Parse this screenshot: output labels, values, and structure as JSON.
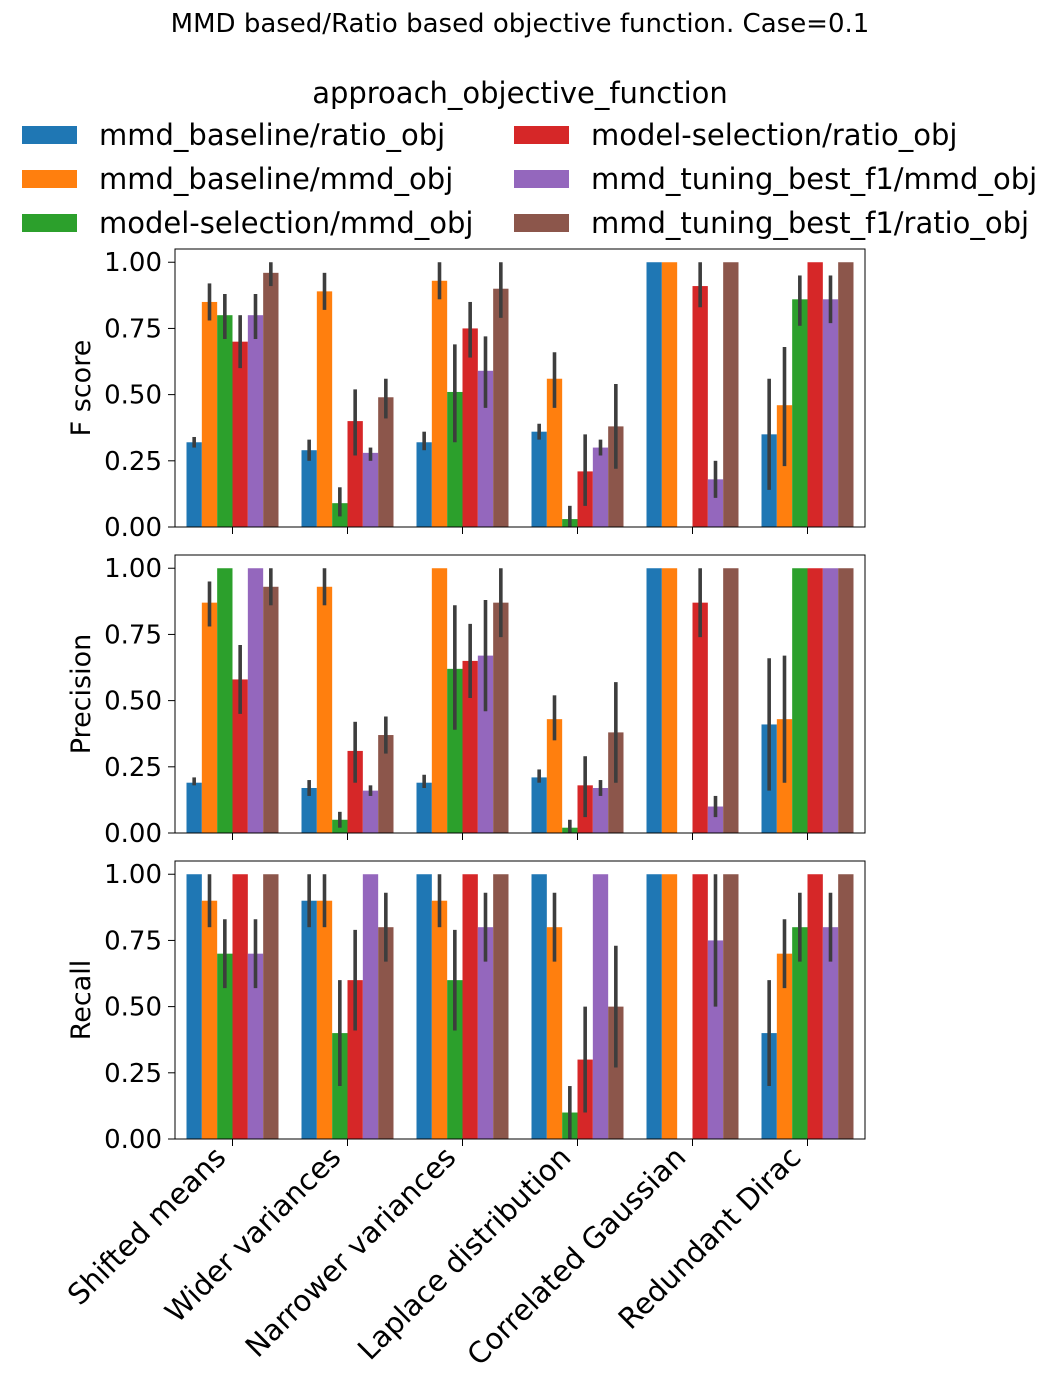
{
  "chart_data": {
    "type": "bar",
    "title": "MMD based/Ratio based objective function. Case=0.1",
    "legend": {
      "title": "approach_objective_function",
      "placement": "top",
      "entries": [
        "mmd_baseline/ratio_obj",
        "mmd_baseline/mmd_obj",
        "model-selection/mmd_obj",
        "model-selection/ratio_obj",
        "mmd_tuning_best_f1/mmd_obj",
        "mmd_tuning_best_f1/ratio_obj"
      ]
    },
    "colors": [
      "#1f77b4",
      "#ff7f0e",
      "#2ca02c",
      "#d62728",
      "#9467bd",
      "#8c564b"
    ],
    "errorbar_color": "#3d3d3d",
    "categories": [
      "Shifted means",
      "Wider variances",
      "Narrower variances",
      "Laplace distribution",
      "Correlated Gaussian",
      "Redundant Dirac"
    ],
    "ylim": [
      0,
      1.05
    ],
    "yticks": [
      0,
      0.25,
      0.5,
      0.75,
      1.0
    ],
    "ytick_labels": [
      "0.00",
      "0.25",
      "0.50",
      "0.75",
      "1.00"
    ],
    "panels": [
      {
        "ylabel": "F score",
        "values": [
          [
            0.32,
            0.85,
            0.8,
            0.7,
            0.8,
            0.96
          ],
          [
            0.29,
            0.89,
            0.09,
            0.4,
            0.28,
            0.49
          ],
          [
            0.32,
            0.93,
            0.51,
            0.75,
            0.59,
            0.9
          ],
          [
            0.36,
            0.56,
            0.03,
            0.21,
            0.3,
            0.38
          ],
          [
            1.0,
            1.0,
            0.0,
            0.91,
            0.18,
            1.0
          ],
          [
            0.35,
            0.46,
            0.86,
            1.0,
            0.86,
            1.0
          ]
        ],
        "errors": [
          [
            [
              0.3,
              0.34
            ],
            [
              0.78,
              0.92
            ],
            [
              0.71,
              0.88
            ],
            [
              0.6,
              0.8
            ],
            [
              0.71,
              0.88
            ],
            [
              0.91,
              1.0
            ]
          ],
          [
            [
              0.25,
              0.33
            ],
            [
              0.82,
              0.96
            ],
            [
              0.04,
              0.15
            ],
            [
              0.27,
              0.52
            ],
            [
              0.25,
              0.3
            ],
            [
              0.41,
              0.56
            ]
          ],
          [
            [
              0.29,
              0.36
            ],
            [
              0.86,
              1.0
            ],
            [
              0.32,
              0.69
            ],
            [
              0.64,
              0.85
            ],
            [
              0.45,
              0.72
            ],
            [
              0.79,
              1.0
            ]
          ],
          [
            [
              0.33,
              0.39
            ],
            [
              0.45,
              0.66
            ],
            [
              0.0,
              0.08
            ],
            [
              0.08,
              0.35
            ],
            [
              0.27,
              0.33
            ],
            [
              0.22,
              0.54
            ]
          ],
          [
            [
              1.0,
              1.0
            ],
            [
              1.0,
              1.0
            ],
            [
              0.0,
              0.0
            ],
            [
              0.83,
              1.0
            ],
            [
              0.11,
              0.25
            ],
            [
              1.0,
              1.0
            ]
          ],
          [
            [
              0.14,
              0.56
            ],
            [
              0.23,
              0.68
            ],
            [
              0.76,
              0.95
            ],
            [
              1.0,
              1.0
            ],
            [
              0.77,
              0.95
            ],
            [
              1.0,
              1.0
            ]
          ]
        ]
      },
      {
        "ylabel": "Precision",
        "values": [
          [
            0.19,
            0.87,
            1.0,
            0.58,
            1.0,
            0.93
          ],
          [
            0.17,
            0.93,
            0.05,
            0.31,
            0.16,
            0.37
          ],
          [
            0.19,
            1.0,
            0.62,
            0.65,
            0.67,
            0.87
          ],
          [
            0.21,
            0.43,
            0.02,
            0.18,
            0.17,
            0.38
          ],
          [
            1.0,
            1.0,
            0.0,
            0.87,
            0.1,
            1.0
          ],
          [
            0.41,
            0.43,
            1.0,
            1.0,
            1.0,
            1.0
          ]
        ],
        "errors": [
          [
            [
              0.18,
              0.21
            ],
            [
              0.78,
              0.95
            ],
            [
              1.0,
              1.0
            ],
            [
              0.45,
              0.71
            ],
            [
              1.0,
              1.0
            ],
            [
              0.86,
              1.0
            ]
          ],
          [
            [
              0.14,
              0.2
            ],
            [
              0.86,
              1.0
            ],
            [
              0.02,
              0.08
            ],
            [
              0.19,
              0.42
            ],
            [
              0.14,
              0.18
            ],
            [
              0.3,
              0.44
            ]
          ],
          [
            [
              0.17,
              0.22
            ],
            [
              1.0,
              1.0
            ],
            [
              0.39,
              0.86
            ],
            [
              0.51,
              0.79
            ],
            [
              0.46,
              0.88
            ],
            [
              0.74,
              1.0
            ]
          ],
          [
            [
              0.19,
              0.24
            ],
            [
              0.35,
              0.52
            ],
            [
              0.0,
              0.05
            ],
            [
              0.06,
              0.29
            ],
            [
              0.14,
              0.2
            ],
            [
              0.19,
              0.57
            ]
          ],
          [
            [
              1.0,
              1.0
            ],
            [
              1.0,
              1.0
            ],
            [
              0.0,
              0.0
            ],
            [
              0.74,
              1.0
            ],
            [
              0.06,
              0.14
            ],
            [
              1.0,
              1.0
            ]
          ],
          [
            [
              0.16,
              0.66
            ],
            [
              0.19,
              0.67
            ],
            [
              1.0,
              1.0
            ],
            [
              1.0,
              1.0
            ],
            [
              1.0,
              1.0
            ],
            [
              1.0,
              1.0
            ]
          ]
        ]
      },
      {
        "ylabel": "Recall",
        "values": [
          [
            1.0,
            0.9,
            0.7,
            1.0,
            0.7,
            1.0
          ],
          [
            0.9,
            0.9,
            0.4,
            0.6,
            1.0,
            0.8
          ],
          [
            1.0,
            0.9,
            0.6,
            1.0,
            0.8,
            1.0
          ],
          [
            1.0,
            0.8,
            0.1,
            0.3,
            1.0,
            0.5
          ],
          [
            1.0,
            1.0,
            0.0,
            1.0,
            0.75,
            1.0
          ],
          [
            0.4,
            0.7,
            0.8,
            1.0,
            0.8,
            1.0
          ]
        ],
        "errors": [
          [
            [
              1.0,
              1.0
            ],
            [
              0.8,
              1.0
            ],
            [
              0.57,
              0.83
            ],
            [
              1.0,
              1.0
            ],
            [
              0.57,
              0.83
            ],
            [
              1.0,
              1.0
            ]
          ],
          [
            [
              0.8,
              1.0
            ],
            [
              0.8,
              1.0
            ],
            [
              0.2,
              0.6
            ],
            [
              0.41,
              0.79
            ],
            [
              1.0,
              1.0
            ],
            [
              0.67,
              0.93
            ]
          ],
          [
            [
              1.0,
              1.0
            ],
            [
              0.8,
              1.0
            ],
            [
              0.41,
              0.79
            ],
            [
              1.0,
              1.0
            ],
            [
              0.67,
              0.93
            ],
            [
              1.0,
              1.0
            ]
          ],
          [
            [
              1.0,
              1.0
            ],
            [
              0.67,
              0.93
            ],
            [
              0.0,
              0.2
            ],
            [
              0.1,
              0.5
            ],
            [
              1.0,
              1.0
            ],
            [
              0.27,
              0.73
            ]
          ],
          [
            [
              1.0,
              1.0
            ],
            [
              1.0,
              1.0
            ],
            [
              0.0,
              0.0
            ],
            [
              1.0,
              1.0
            ],
            [
              0.5,
              1.0
            ],
            [
              1.0,
              1.0
            ]
          ],
          [
            [
              0.2,
              0.6
            ],
            [
              0.57,
              0.83
            ],
            [
              0.67,
              0.93
            ],
            [
              1.0,
              1.0
            ],
            [
              0.67,
              0.93
            ],
            [
              1.0,
              1.0
            ]
          ]
        ]
      }
    ]
  }
}
